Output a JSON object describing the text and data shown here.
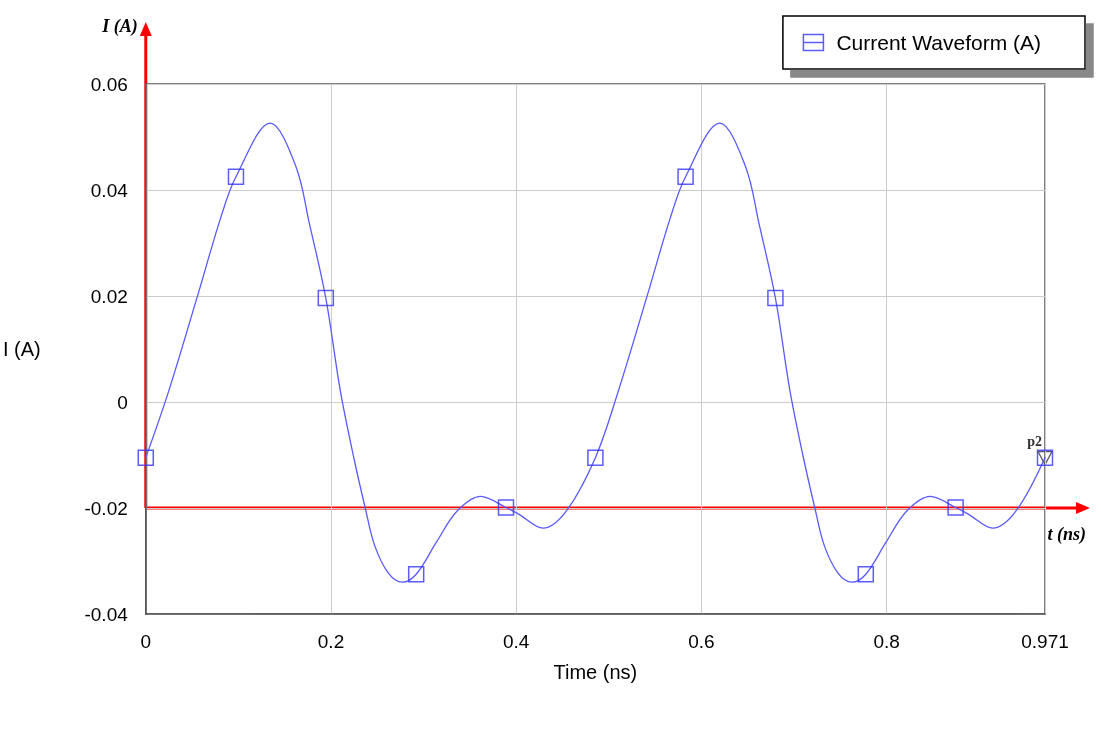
{
  "chart_data": {
    "type": "line",
    "xlabel": "Time (ns)",
    "ylabel": "I (A)",
    "xlim": [
      0,
      0.971
    ],
    "xticks": [
      0,
      0.2,
      0.4,
      0.6,
      0.8,
      0.971
    ],
    "ylim": [
      -0.04,
      0.06
    ],
    "yticks": [
      -0.04,
      -0.02,
      0,
      0.02,
      0.04,
      0.06
    ],
    "grid": true,
    "legend": "top right",
    "series": [
      {
        "type": "line",
        "color": "#5a5aff",
        "marker": "none",
        "line_style": "solid",
        "x": [
          0,
          0.025,
          0.0567,
          0.0808,
          0.0974,
          0.1345,
          0.162,
          0.177,
          0.1944,
          0.21,
          0.225,
          0.237,
          0.247,
          0.262,
          0.277,
          0.292,
          0.314,
          0.336,
          0.3615,
          0.389,
          0.403,
          0.429,
          0.454,
          0.4855,
          0.5105,
          0.5422,
          0.5663,
          0.5829,
          0.62,
          0.6475,
          0.6625,
          0.6799,
          0.6955,
          0.7105,
          0.7225,
          0.7325,
          0.7475,
          0.7625,
          0.7775,
          0.7995,
          0.8215,
          0.847,
          0.8745,
          0.8885,
          0.9145,
          0.9395,
          0.971
        ],
        "values": [
          -0.0105,
          0.0022,
          0.0205,
          0.0347,
          0.0425,
          0.0526,
          0.0445,
          0.0334,
          0.0196,
          0.0022,
          -0.0108,
          -0.02,
          -0.027,
          -0.0323,
          -0.034,
          -0.0325,
          -0.0264,
          -0.0206,
          -0.0178,
          -0.0199,
          -0.0212,
          -0.0238,
          -0.0206,
          -0.0105,
          0.0022,
          0.0205,
          0.0347,
          0.0425,
          0.0526,
          0.0445,
          0.0334,
          0.0196,
          0.0022,
          -0.0108,
          -0.02,
          -0.027,
          -0.0323,
          -0.034,
          -0.0325,
          -0.0264,
          -0.0206,
          -0.0178,
          -0.0199,
          -0.0212,
          -0.0238,
          -0.0206,
          -0.0105
        ]
      },
      {
        "type": "scatter",
        "name": "Current Waveform (A)",
        "color": "#3333ff",
        "marker": "square",
        "x": [
          0,
          0.0974,
          0.1944,
          0.292,
          0.389,
          0.4855,
          0.5829,
          0.6799,
          0.7775,
          0.8745,
          0.971
        ],
        "values": [
          -0.0105,
          0.0425,
          0.0196,
          -0.0325,
          -0.0199,
          -0.0105,
          0.0425,
          0.0196,
          -0.0325,
          -0.0199,
          -0.0105
        ]
      }
    ],
    "ref_lines": [
      {
        "axis": "x",
        "value": 0,
        "label": "I (A)",
        "color": "#ff0000"
      },
      {
        "axis": "y",
        "value": -0.02,
        "label": "t (ns)",
        "color": "#ff0000"
      }
    ],
    "annotations": [
      {
        "text": "p2",
        "x": 0.971,
        "y": -0.0105
      }
    ]
  }
}
